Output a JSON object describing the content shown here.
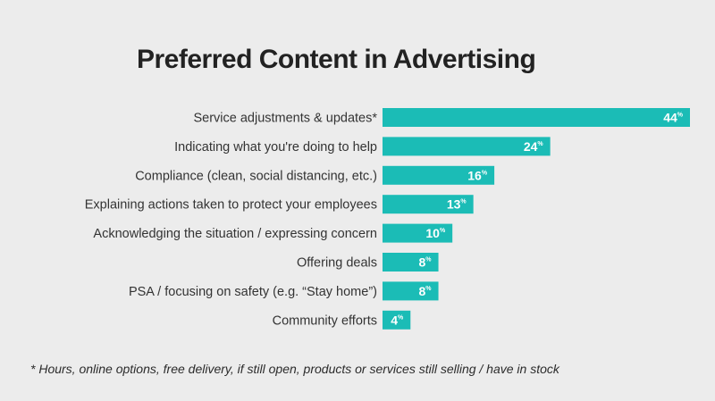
{
  "chart_data": {
    "type": "bar",
    "orientation": "horizontal",
    "title": "Preferred Content in Advertising",
    "categories": [
      "Service adjustments & updates*",
      "Indicating what you're doing to help",
      "Compliance (clean, social distancing, etc.)",
      "Explaining actions taken to protect your employees",
      "Acknowledging the situation / expressing concern",
      "Offering deals",
      "PSA / focusing on safety (e.g. “Stay home”)",
      "Community efforts"
    ],
    "values": [
      44,
      24,
      16,
      13,
      10,
      8,
      8,
      4
    ],
    "value_suffix": "%",
    "xlim": [
      0,
      44
    ],
    "grid": false,
    "bar_color": "#1bbcb6",
    "footnote": "* Hours, online options, free delivery, if still open, products or services still selling / have in stock"
  }
}
